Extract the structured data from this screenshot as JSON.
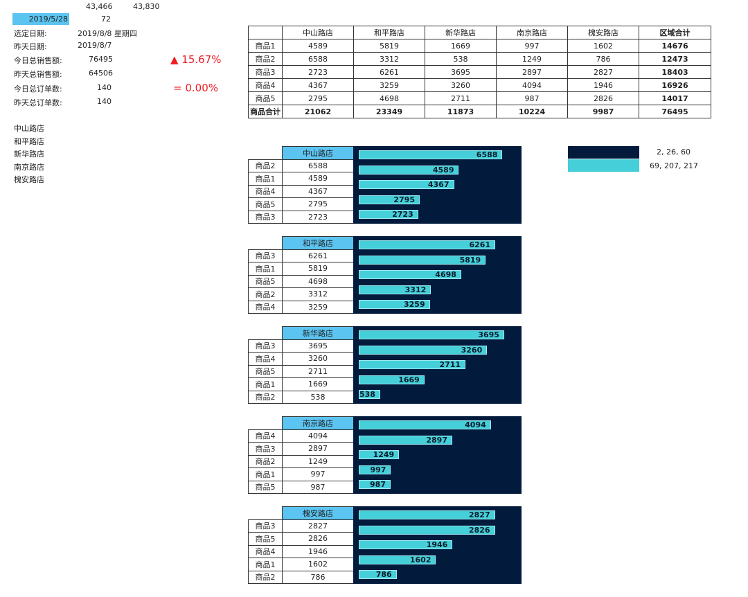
{
  "top": {
    "val1": "43,466",
    "val2": "43,830",
    "date": "2019/5/28",
    "date_num": "72"
  },
  "info": [
    {
      "label": "选定日期:",
      "value": "2019/8/8 星期四"
    },
    {
      "label": "昨天日期:",
      "value": "2019/8/7"
    },
    {
      "label": "今日总销售额:",
      "value": "76495"
    },
    {
      "label": "昨天总销售额:",
      "value": "64506"
    },
    {
      "label": "今日总订单数:",
      "value": "140"
    },
    {
      "label": "昨天总订单数:",
      "value": "140"
    }
  ],
  "kpi": {
    "sales_change": "▲ 15.67%",
    "orders_change": "= 0.00%"
  },
  "store_list": [
    "中山路店",
    "和平路店",
    "新华路店",
    "南京路店",
    "槐安路店"
  ],
  "main_table": {
    "headers": [
      "",
      "中山路店",
      "和平路店",
      "新华路店",
      "南京路店",
      "槐安路店",
      "区域合计"
    ],
    "rows": [
      [
        "商品1",
        "4589",
        "5819",
        "1669",
        "997",
        "1602",
        "14676"
      ],
      [
        "商品2",
        "6588",
        "3312",
        "538",
        "1249",
        "786",
        "12473"
      ],
      [
        "商品3",
        "2723",
        "6261",
        "3695",
        "2897",
        "2827",
        "18403"
      ],
      [
        "商品4",
        "4367",
        "3259",
        "3260",
        "4094",
        "1946",
        "16926"
      ],
      [
        "商品5",
        "2795",
        "4698",
        "2711",
        "987",
        "2826",
        "14017"
      ],
      [
        "商品合计",
        "21062",
        "23349",
        "11873",
        "10224",
        "9987",
        "76495"
      ]
    ]
  },
  "store_tables": [
    {
      "name": "中山路店",
      "rows": [
        [
          "商品2",
          "6588"
        ],
        [
          "商品1",
          "4589"
        ],
        [
          "商品4",
          "4367"
        ],
        [
          "商品5",
          "2795"
        ],
        [
          "商品3",
          "2723"
        ]
      ]
    },
    {
      "name": "和平路店",
      "rows": [
        [
          "商品3",
          "6261"
        ],
        [
          "商品1",
          "5819"
        ],
        [
          "商品5",
          "4698"
        ],
        [
          "商品2",
          "3312"
        ],
        [
          "商品4",
          "3259"
        ]
      ]
    },
    {
      "name": "新华路店",
      "rows": [
        [
          "商品3",
          "3695"
        ],
        [
          "商品4",
          "3260"
        ],
        [
          "商品5",
          "2711"
        ],
        [
          "商品1",
          "1669"
        ],
        [
          "商品2",
          "538"
        ]
      ]
    },
    {
      "name": "南京路店",
      "rows": [
        [
          "商品4",
          "4094"
        ],
        [
          "商品3",
          "2897"
        ],
        [
          "商品2",
          "1249"
        ],
        [
          "商品1",
          "997"
        ],
        [
          "商品5",
          "987"
        ]
      ]
    },
    {
      "name": "槐安路店",
      "rows": [
        [
          "商品3",
          "2827"
        ],
        [
          "商品5",
          "2826"
        ],
        [
          "商品4",
          "1946"
        ],
        [
          "商品1",
          "1602"
        ],
        [
          "商品2",
          "786"
        ]
      ]
    }
  ],
  "legend": [
    {
      "color": "#021a3c",
      "text": "2, 26, 60"
    },
    {
      "color": "#45cfd9",
      "text": "69, 207, 217"
    }
  ],
  "chart_data": [
    {
      "type": "bar",
      "title": "",
      "categories": [
        "商品2",
        "商品1",
        "商品4",
        "商品5",
        "商品3"
      ],
      "values": [
        6588,
        4589,
        4367,
        2795,
        2723
      ],
      "xlim": [
        0,
        7400
      ]
    },
    {
      "type": "bar",
      "title": "",
      "categories": [
        "商品3",
        "商品1",
        "商品5",
        "商品2",
        "商品4"
      ],
      "values": [
        6261,
        5819,
        4698,
        3312,
        3259
      ],
      "xlim": [
        0,
        7400
      ]
    },
    {
      "type": "bar",
      "title": "",
      "categories": [
        "商品3",
        "商品4",
        "商品5",
        "商品1",
        "商品2"
      ],
      "values": [
        3695,
        3260,
        2711,
        1669,
        538
      ],
      "xlim": [
        0,
        4100
      ]
    },
    {
      "type": "bar",
      "title": "",
      "categories": [
        "商品4",
        "商品3",
        "商品2",
        "商品1",
        "商品5"
      ],
      "values": [
        4094,
        2897,
        1249,
        997,
        987
      ],
      "xlim": [
        0,
        5000
      ]
    },
    {
      "type": "bar",
      "title": "",
      "categories": [
        "商品3",
        "商品5",
        "商品4",
        "商品1",
        "商品2"
      ],
      "values": [
        2827,
        2826,
        1946,
        1602,
        786
      ],
      "xlim": [
        0,
        3350
      ]
    }
  ],
  "colors": {
    "chart_bg": "#021a3c",
    "bar": "#45cfd9",
    "header_blue": "#5bc4f0",
    "kpi_red": "#ee1c25"
  }
}
